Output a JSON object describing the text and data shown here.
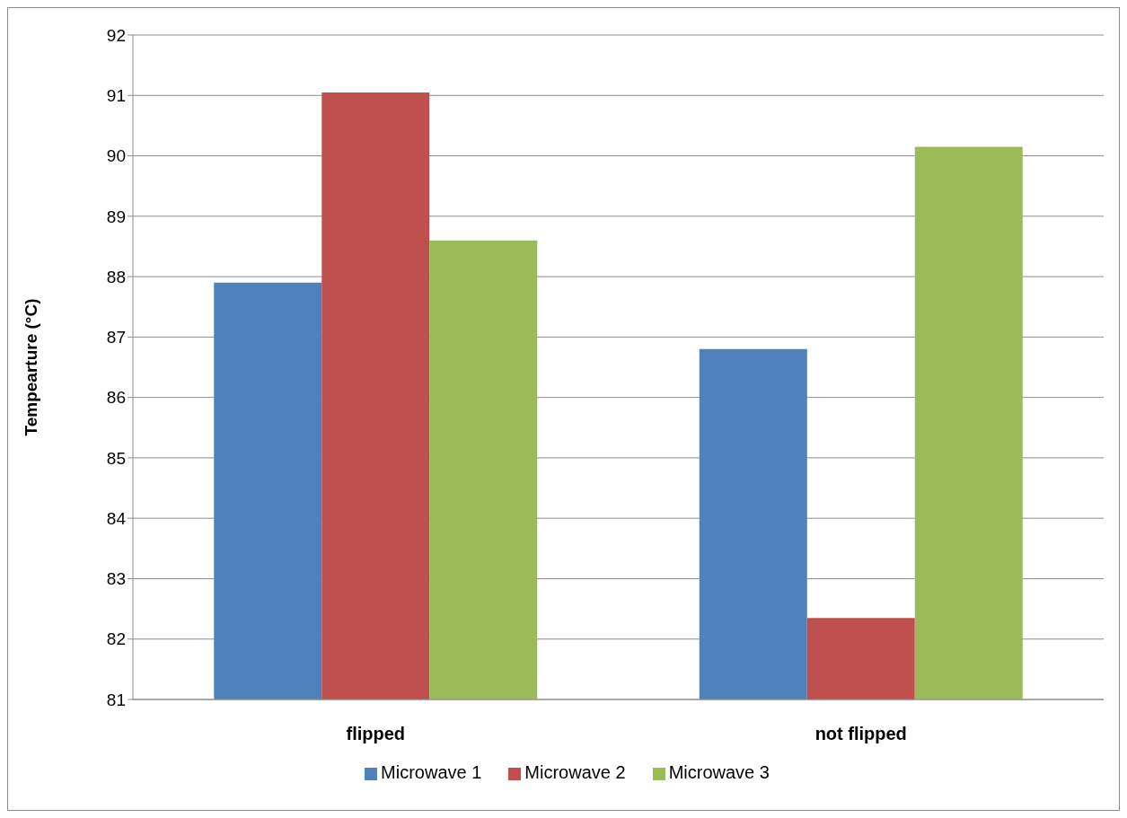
{
  "chart_data": {
    "type": "bar",
    "ylabel": "Tempearture (°C)",
    "categories": [
      "flipped",
      "not flipped"
    ],
    "series": [
      {
        "name": "Microwave 1",
        "color": "#4f81bd",
        "values": [
          87.9,
          86.8
        ]
      },
      {
        "name": "Microwave 2",
        "color": "#c0504d",
        "values": [
          91.05,
          82.35
        ]
      },
      {
        "name": "Microwave 3",
        "color": "#9bbb59",
        "values": [
          88.6,
          90.15
        ]
      }
    ],
    "ylim": [
      81,
      92
    ],
    "yticks": [
      81,
      82,
      83,
      84,
      85,
      86,
      87,
      88,
      89,
      90,
      91,
      92
    ],
    "grid": "y",
    "legend": "bottom"
  }
}
